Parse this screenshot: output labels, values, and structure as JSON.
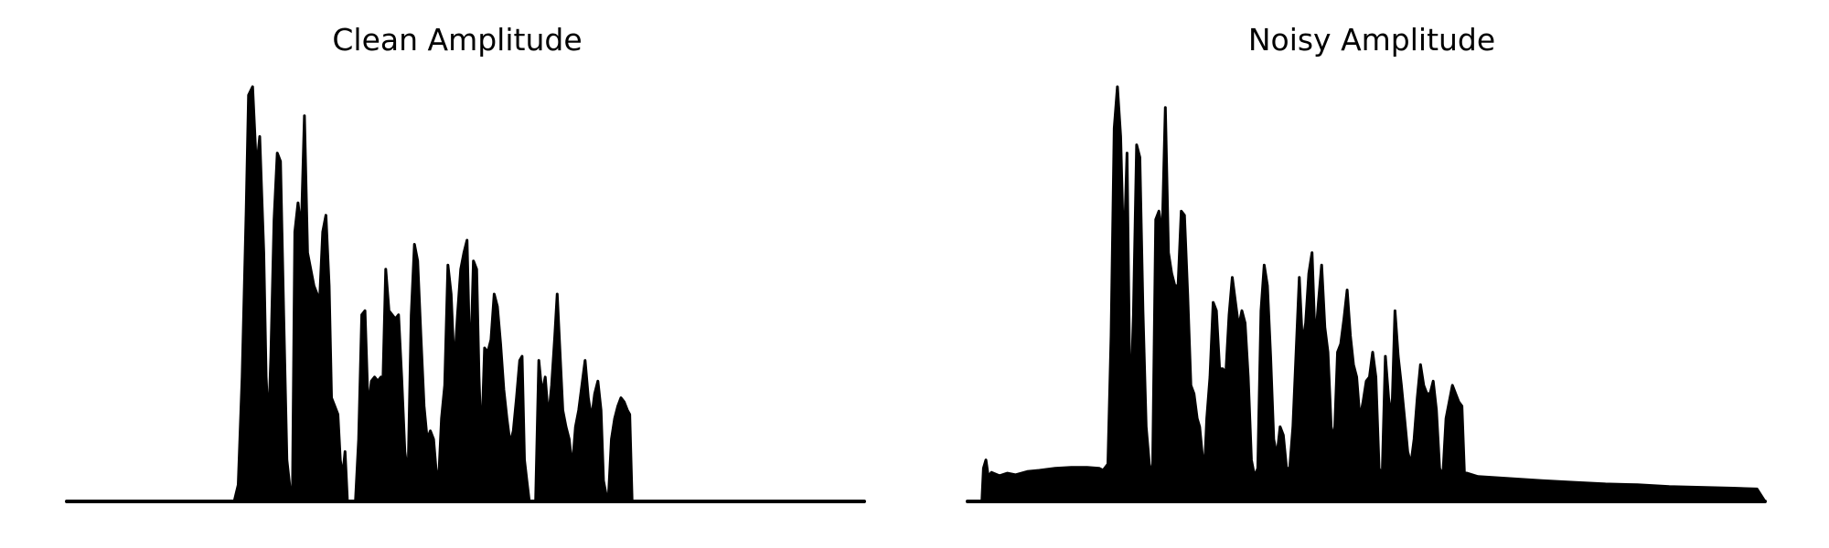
{
  "chart_data": [
    {
      "type": "area",
      "title": "Clean Amplitude",
      "xlabel": "",
      "ylabel": "",
      "axes_visible": false,
      "grid": false,
      "color": "#000000",
      "ylim": [
        0,
        1
      ],
      "points": [
        [
          0.0,
          0.0
        ],
        [
          0.21,
          0.0
        ],
        [
          0.215,
          0.04
        ],
        [
          0.22,
          0.3
        ],
        [
          0.225,
          0.7
        ],
        [
          0.228,
          0.98
        ],
        [
          0.233,
          1.0
        ],
        [
          0.238,
          0.8
        ],
        [
          0.242,
          0.88
        ],
        [
          0.247,
          0.6
        ],
        [
          0.25,
          0.3
        ],
        [
          0.253,
          0.18
        ],
        [
          0.256,
          0.35
        ],
        [
          0.26,
          0.68
        ],
        [
          0.264,
          0.84
        ],
        [
          0.268,
          0.82
        ],
        [
          0.272,
          0.45
        ],
        [
          0.276,
          0.1
        ],
        [
          0.28,
          0.03
        ],
        [
          0.283,
          0.01
        ],
        [
          0.286,
          0.65
        ],
        [
          0.29,
          0.72
        ],
        [
          0.294,
          0.65
        ],
        [
          0.298,
          0.93
        ],
        [
          0.302,
          0.6
        ],
        [
          0.306,
          0.56
        ],
        [
          0.31,
          0.52
        ],
        [
          0.314,
          0.5
        ],
        [
          0.317,
          0.48
        ],
        [
          0.321,
          0.65
        ],
        [
          0.325,
          0.69
        ],
        [
          0.329,
          0.52
        ],
        [
          0.332,
          0.25
        ],
        [
          0.336,
          0.23
        ],
        [
          0.34,
          0.21
        ],
        [
          0.343,
          0.1
        ],
        [
          0.346,
          0.06
        ],
        [
          0.349,
          0.12
        ],
        [
          0.352,
          0.0
        ],
        [
          0.362,
          0.0
        ],
        [
          0.366,
          0.15
        ],
        [
          0.37,
          0.45
        ],
        [
          0.374,
          0.46
        ],
        [
          0.378,
          0.22
        ],
        [
          0.382,
          0.29
        ],
        [
          0.386,
          0.3
        ],
        [
          0.39,
          0.29
        ],
        [
          0.394,
          0.3
        ],
        [
          0.396,
          0.25
        ],
        [
          0.4,
          0.56
        ],
        [
          0.404,
          0.46
        ],
        [
          0.408,
          0.45
        ],
        [
          0.412,
          0.44
        ],
        [
          0.416,
          0.45
        ],
        [
          0.42,
          0.3
        ],
        [
          0.424,
          0.12
        ],
        [
          0.428,
          0.06
        ],
        [
          0.432,
          0.45
        ],
        [
          0.436,
          0.62
        ],
        [
          0.44,
          0.58
        ],
        [
          0.444,
          0.4
        ],
        [
          0.448,
          0.23
        ],
        [
          0.452,
          0.15
        ],
        [
          0.456,
          0.17
        ],
        [
          0.46,
          0.15
        ],
        [
          0.463,
          0.08
        ],
        [
          0.466,
          0.04
        ],
        [
          0.47,
          0.2
        ],
        [
          0.474,
          0.28
        ],
        [
          0.478,
          0.57
        ],
        [
          0.482,
          0.5
        ],
        [
          0.486,
          0.32
        ],
        [
          0.49,
          0.45
        ],
        [
          0.494,
          0.56
        ],
        [
          0.498,
          0.6
        ],
        [
          0.502,
          0.63
        ],
        [
          0.506,
          0.3
        ],
        [
          0.51,
          0.58
        ],
        [
          0.514,
          0.56
        ],
        [
          0.517,
          0.3
        ],
        [
          0.52,
          0.13
        ],
        [
          0.524,
          0.37
        ],
        [
          0.528,
          0.36
        ],
        [
          0.532,
          0.39
        ],
        [
          0.536,
          0.5
        ],
        [
          0.54,
          0.47
        ],
        [
          0.544,
          0.38
        ],
        [
          0.548,
          0.27
        ],
        [
          0.552,
          0.2
        ],
        [
          0.556,
          0.14
        ],
        [
          0.56,
          0.17
        ],
        [
          0.564,
          0.25
        ],
        [
          0.568,
          0.34
        ],
        [
          0.571,
          0.35
        ],
        [
          0.574,
          0.1
        ],
        [
          0.577,
          0.05
        ],
        [
          0.58,
          0.0
        ],
        [
          0.588,
          0.0
        ],
        [
          0.592,
          0.34
        ],
        [
          0.596,
          0.26
        ],
        [
          0.6,
          0.3
        ],
        [
          0.604,
          0.2
        ],
        [
          0.608,
          0.28
        ],
        [
          0.612,
          0.4
        ],
        [
          0.615,
          0.5
        ],
        [
          0.618,
          0.38
        ],
        [
          0.622,
          0.22
        ],
        [
          0.626,
          0.18
        ],
        [
          0.63,
          0.15
        ],
        [
          0.634,
          0.08
        ],
        [
          0.638,
          0.18
        ],
        [
          0.642,
          0.22
        ],
        [
          0.646,
          0.28
        ],
        [
          0.65,
          0.34
        ],
        [
          0.654,
          0.25
        ],
        [
          0.658,
          0.2
        ],
        [
          0.662,
          0.26
        ],
        [
          0.666,
          0.29
        ],
        [
          0.67,
          0.22
        ],
        [
          0.673,
          0.05
        ],
        [
          0.676,
          0.02
        ],
        [
          0.679,
          0.0
        ],
        [
          0.683,
          0.15
        ],
        [
          0.687,
          0.2
        ],
        [
          0.691,
          0.23
        ],
        [
          0.695,
          0.25
        ],
        [
          0.699,
          0.24
        ],
        [
          0.703,
          0.22
        ],
        [
          0.706,
          0.21
        ],
        [
          0.709,
          0.0
        ],
        [
          1.0,
          0.0
        ]
      ]
    },
    {
      "type": "area",
      "title": "Noisy Amplitude",
      "xlabel": "",
      "ylabel": "",
      "axes_visible": false,
      "grid": false,
      "color": "#000000",
      "ylim": [
        0,
        1
      ],
      "points": [
        [
          0.0,
          0.0
        ],
        [
          0.018,
          0.0
        ],
        [
          0.02,
          0.08
        ],
        [
          0.023,
          0.1
        ],
        [
          0.026,
          0.06
        ],
        [
          0.03,
          0.07
        ],
        [
          0.04,
          0.062
        ],
        [
          0.05,
          0.068
        ],
        [
          0.06,
          0.064
        ],
        [
          0.075,
          0.072
        ],
        [
          0.09,
          0.075
        ],
        [
          0.11,
          0.08
        ],
        [
          0.13,
          0.082
        ],
        [
          0.15,
          0.082
        ],
        [
          0.165,
          0.08
        ],
        [
          0.17,
          0.075
        ],
        [
          0.176,
          0.09
        ],
        [
          0.18,
          0.4
        ],
        [
          0.184,
          0.9
        ],
        [
          0.188,
          1.0
        ],
        [
          0.192,
          0.88
        ],
        [
          0.196,
          0.58
        ],
        [
          0.2,
          0.84
        ],
        [
          0.204,
          0.2
        ],
        [
          0.208,
          0.45
        ],
        [
          0.212,
          0.86
        ],
        [
          0.216,
          0.83
        ],
        [
          0.22,
          0.46
        ],
        [
          0.224,
          0.18
        ],
        [
          0.228,
          0.09
        ],
        [
          0.232,
          0.06
        ],
        [
          0.236,
          0.68
        ],
        [
          0.24,
          0.7
        ],
        [
          0.244,
          0.64
        ],
        [
          0.248,
          0.95
        ],
        [
          0.252,
          0.6
        ],
        [
          0.256,
          0.55
        ],
        [
          0.26,
          0.52
        ],
        [
          0.264,
          0.52
        ],
        [
          0.268,
          0.7
        ],
        [
          0.272,
          0.69
        ],
        [
          0.276,
          0.5
        ],
        [
          0.28,
          0.28
        ],
        [
          0.284,
          0.26
        ],
        [
          0.288,
          0.2
        ],
        [
          0.291,
          0.18
        ],
        [
          0.294,
          0.12
        ],
        [
          0.297,
          0.07
        ],
        [
          0.3,
          0.2
        ],
        [
          0.304,
          0.3
        ],
        [
          0.308,
          0.48
        ],
        [
          0.312,
          0.46
        ],
        [
          0.316,
          0.32
        ],
        [
          0.32,
          0.32
        ],
        [
          0.324,
          0.31
        ],
        [
          0.328,
          0.45
        ],
        [
          0.332,
          0.54
        ],
        [
          0.336,
          0.48
        ],
        [
          0.34,
          0.42
        ],
        [
          0.344,
          0.46
        ],
        [
          0.348,
          0.43
        ],
        [
          0.352,
          0.3
        ],
        [
          0.356,
          0.1
        ],
        [
          0.36,
          0.06
        ],
        [
          0.364,
          0.08
        ],
        [
          0.368,
          0.46
        ],
        [
          0.372,
          0.57
        ],
        [
          0.376,
          0.52
        ],
        [
          0.38,
          0.35
        ],
        [
          0.384,
          0.15
        ],
        [
          0.388,
          0.11
        ],
        [
          0.392,
          0.18
        ],
        [
          0.396,
          0.16
        ],
        [
          0.4,
          0.08
        ],
        [
          0.404,
          0.08
        ],
        [
          0.408,
          0.18
        ],
        [
          0.412,
          0.36
        ],
        [
          0.416,
          0.54
        ],
        [
          0.42,
          0.38
        ],
        [
          0.424,
          0.43
        ],
        [
          0.428,
          0.55
        ],
        [
          0.432,
          0.6
        ],
        [
          0.436,
          0.38
        ],
        [
          0.44,
          0.48
        ],
        [
          0.444,
          0.57
        ],
        [
          0.448,
          0.42
        ],
        [
          0.452,
          0.36
        ],
        [
          0.456,
          0.18
        ],
        [
          0.46,
          0.15
        ],
        [
          0.464,
          0.36
        ],
        [
          0.468,
          0.38
        ],
        [
          0.472,
          0.44
        ],
        [
          0.476,
          0.51
        ],
        [
          0.48,
          0.4
        ],
        [
          0.484,
          0.33
        ],
        [
          0.488,
          0.3
        ],
        [
          0.492,
          0.2
        ],
        [
          0.496,
          0.24
        ],
        [
          0.5,
          0.29
        ],
        [
          0.504,
          0.3
        ],
        [
          0.508,
          0.36
        ],
        [
          0.512,
          0.3
        ],
        [
          0.516,
          0.08
        ],
        [
          0.52,
          0.06
        ],
        [
          0.524,
          0.35
        ],
        [
          0.528,
          0.25
        ],
        [
          0.532,
          0.2
        ],
        [
          0.536,
          0.46
        ],
        [
          0.54,
          0.35
        ],
        [
          0.544,
          0.28
        ],
        [
          0.548,
          0.2
        ],
        [
          0.552,
          0.12
        ],
        [
          0.556,
          0.09
        ],
        [
          0.56,
          0.15
        ],
        [
          0.564,
          0.25
        ],
        [
          0.568,
          0.33
        ],
        [
          0.572,
          0.28
        ],
        [
          0.576,
          0.26
        ],
        [
          0.58,
          0.26
        ],
        [
          0.584,
          0.29
        ],
        [
          0.588,
          0.22
        ],
        [
          0.592,
          0.08
        ],
        [
          0.596,
          0.06
        ],
        [
          0.6,
          0.2
        ],
        [
          0.604,
          0.24
        ],
        [
          0.608,
          0.28
        ],
        [
          0.612,
          0.26
        ],
        [
          0.616,
          0.24
        ],
        [
          0.62,
          0.23
        ],
        [
          0.623,
          0.07
        ],
        [
          0.64,
          0.06
        ],
        [
          0.68,
          0.055
        ],
        [
          0.72,
          0.05
        ],
        [
          0.76,
          0.046
        ],
        [
          0.8,
          0.042
        ],
        [
          0.84,
          0.04
        ],
        [
          0.88,
          0.036
        ],
        [
          0.92,
          0.034
        ],
        [
          0.96,
          0.032
        ],
        [
          0.99,
          0.03
        ],
        [
          1.0,
          0.0
        ]
      ]
    }
  ]
}
